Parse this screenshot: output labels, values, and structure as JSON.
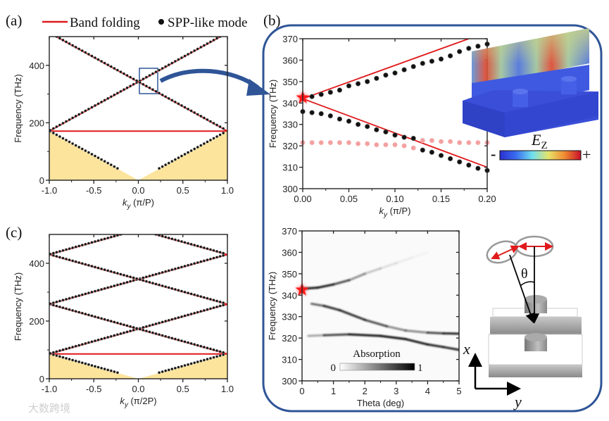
{
  "panel_labels": {
    "a": "(a)",
    "b": "(b)",
    "c": "(c)"
  },
  "legend": {
    "band_folding": "Band folding",
    "spp_mode": "SPP-like mode"
  },
  "colors": {
    "band_line": "#e0191b",
    "spp_dot": "#111111",
    "spp_dot_weak": "#f4a0a0",
    "light_cone_fill": "#fde49c",
    "frame": "#2f5597",
    "star": "#ff1a1a"
  },
  "watermark": "大数跨境",
  "chart_data": [
    {
      "id": "a",
      "type": "line",
      "title": "",
      "xlabel": {
        "var": "k",
        "sub": "y",
        "unit": " (π/P)"
      },
      "ylabel": "Frequency (THz)",
      "xlim": [
        -1,
        1
      ],
      "ylim": [
        0,
        500
      ],
      "xticks": [
        "-1.0",
        "-0.5",
        "0.0",
        "0.5",
        "1.0"
      ],
      "xtick_values": [
        -1,
        -0.5,
        0,
        0.5,
        1
      ],
      "yticks": [
        "0",
        "200",
        "400"
      ],
      "ytick_values": [
        0,
        200,
        400
      ],
      "folding_unit_THz": 171,
      "folding_orders": [
        0,
        2
      ],
      "light_cone_shaded": true,
      "spp_dot_gap_near_zero": 0.2
    },
    {
      "id": "c",
      "type": "line",
      "xlabel": {
        "var": "k",
        "sub": "y",
        "unit": " (π/2P)"
      },
      "ylabel": "Frequency (THz)",
      "xlim": [
        -1,
        1
      ],
      "ylim": [
        0,
        500
      ],
      "xticks": [
        "-1.0",
        "-0.5",
        "0.0",
        "0.5",
        "1.0"
      ],
      "xtick_values": [
        -1,
        -0.5,
        0,
        0.5,
        1
      ],
      "yticks": [
        "0",
        "200",
        "400"
      ],
      "ytick_values": [
        0,
        200,
        400
      ],
      "folding_unit_THz": 86,
      "folding_orders": [
        0,
        2,
        4,
        6
      ],
      "light_cone_shaded": true,
      "spp_dot_gap_near_zero": 0.2
    },
    {
      "id": "b-top",
      "type": "scatter",
      "xlabel": {
        "var": "k",
        "sub": "y",
        "unit": " (π/P)"
      },
      "ylabel": "Frequency (THz)",
      "xlim": [
        0,
        0.2
      ],
      "ylim": [
        300,
        370
      ],
      "xticks": [
        "0.00",
        "0.05",
        "0.10",
        "0.15",
        "0.20"
      ],
      "xtick_values": [
        0,
        0.05,
        0.1,
        0.15,
        0.2
      ],
      "yticks": [
        "300",
        "310",
        "320",
        "330",
        "340",
        "350",
        "360",
        "370"
      ],
      "ytick_values": [
        300,
        310,
        320,
        330,
        340,
        350,
        360,
        370
      ],
      "lines": [
        {
          "name": "Band folding upper",
          "x": [
            0,
            0.18
          ],
          "y": [
            342,
            370
          ]
        },
        {
          "name": "Band folding lower",
          "x": [
            0,
            0.2
          ],
          "y": [
            342,
            310
          ]
        }
      ],
      "series": [
        {
          "name": "upper branch",
          "style": "dark",
          "x": [
            0.01,
            0.02,
            0.03,
            0.04,
            0.05,
            0.06,
            0.07,
            0.08,
            0.09,
            0.1,
            0.11,
            0.12,
            0.13,
            0.14,
            0.15,
            0.16,
            0.17,
            0.18,
            0.19,
            0.2
          ],
          "y": [
            343,
            344,
            345,
            346,
            348,
            349,
            350,
            351.5,
            353,
            354,
            355.5,
            357,
            358.5,
            359.5,
            360.5,
            362,
            364,
            365.5,
            366.5,
            367.5
          ]
        },
        {
          "name": "lower branch",
          "style": "dark",
          "x": [
            0,
            0.01,
            0.02,
            0.03,
            0.04,
            0.05,
            0.06,
            0.07,
            0.08,
            0.09,
            0.1,
            0.11,
            0.12,
            0.13,
            0.14,
            0.15,
            0.16,
            0.17,
            0.18,
            0.19,
            0.2
          ],
          "y": [
            336,
            335.5,
            335,
            334,
            332.5,
            331.5,
            330,
            329,
            327.5,
            326.5,
            325,
            324,
            323.5,
            318,
            317,
            315.5,
            314,
            312.5,
            311,
            309.5,
            308.5
          ]
        },
        {
          "name": "dark-mode branch",
          "style": "weak",
          "x": [
            0,
            0.01,
            0.02,
            0.03,
            0.04,
            0.05,
            0.06,
            0.07,
            0.08,
            0.09,
            0.1,
            0.11,
            0.12,
            0.13,
            0.14,
            0.15,
            0.16,
            0.17,
            0.18,
            0.19,
            0.2
          ],
          "y": [
            321.5,
            321.5,
            321.5,
            321.5,
            321.5,
            321.5,
            321,
            321,
            320.5,
            320.5,
            320.5,
            320,
            319,
            322.5,
            322.5,
            322,
            322,
            321.5,
            321.5,
            321.5,
            321.5
          ]
        }
      ],
      "star": {
        "x": 0,
        "y": 342.5
      },
      "inset": {
        "field_label": "E",
        "field_sub": "Z",
        "minus": "-",
        "plus": "+"
      }
    },
    {
      "id": "b-bottom",
      "type": "heatmap",
      "xlabel": {
        "var": "",
        "sub": "",
        "unit": "Theta (deg)"
      },
      "ylabel": "Frequency (THz)",
      "xlim": [
        0,
        5
      ],
      "ylim": [
        300,
        370
      ],
      "xticks": [
        "0",
        "1",
        "2",
        "3",
        "4",
        "5"
      ],
      "xtick_values": [
        0,
        1,
        2,
        3,
        4,
        5
      ],
      "yticks": [
        "300",
        "310",
        "320",
        "330",
        "340",
        "350",
        "360",
        "370"
      ],
      "ytick_values": [
        300,
        310,
        320,
        330,
        340,
        350,
        360,
        370
      ],
      "colorbar": {
        "title": "Absorption",
        "min_label": "0",
        "max_label": "1",
        "range": [
          0,
          1
        ]
      },
      "absorption_bands": [
        {
          "name": "upper",
          "points": [
            [
              0,
              343,
              0.9
            ],
            [
              0.5,
              343.5,
              0.95
            ],
            [
              1,
              345,
              0.85
            ],
            [
              1.5,
              347,
              0.55
            ],
            [
              2,
              350,
              0.3
            ],
            [
              2.5,
              352.5,
              0.15
            ],
            [
              3,
              355,
              0.08
            ],
            [
              3.5,
              357.5,
              0.04
            ],
            [
              4,
              360,
              0.02
            ]
          ]
        },
        {
          "name": "middle",
          "points": [
            [
              0.3,
              336,
              0.4
            ],
            [
              0.7,
              335,
              0.8
            ],
            [
              1.2,
              333,
              0.85
            ],
            [
              2,
              328.5,
              0.8
            ],
            [
              2.7,
              325.5,
              0.6
            ],
            [
              3.3,
              323.5,
              0.3
            ],
            [
              4,
              322.5,
              0.6
            ],
            [
              4.5,
              322.2,
              0.85
            ],
            [
              5,
              322,
              0.9
            ]
          ]
        },
        {
          "name": "lower",
          "points": [
            [
              0.2,
              321,
              0.1
            ],
            [
              0.7,
              321.3,
              0.6
            ],
            [
              1.5,
              321.7,
              0.9
            ],
            [
              2.5,
              321,
              0.95
            ],
            [
              3.3,
              319.5,
              0.95
            ],
            [
              4,
              317,
              0.9
            ],
            [
              4.5,
              315.8,
              0.85
            ],
            [
              5,
              314.5,
              0.85
            ]
          ]
        }
      ],
      "star": {
        "x": 0,
        "y": 342.5
      },
      "diagram": {
        "theta_label": "θ",
        "axis_x": "x",
        "axis_y": "y"
      }
    }
  ]
}
